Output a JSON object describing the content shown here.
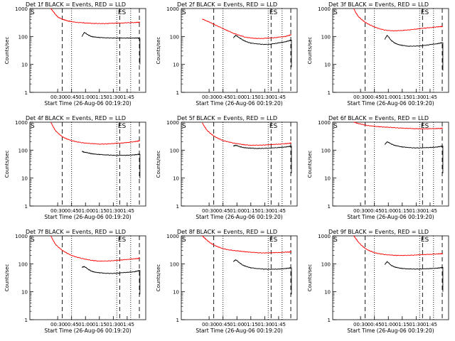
{
  "layout": "3x3",
  "chart_data": [
    {
      "type": "line",
      "title": "Det 1f BLACK = Events, RED = LLD",
      "xlabel": "Start Time (26-Aug-06 00:19:20)",
      "ylabel": "Counts/sec",
      "ylog": true,
      "ylim": [
        1,
        1000
      ],
      "yticks": [
        "1",
        "10",
        "100",
        "1000"
      ],
      "xticks": [
        "00:30",
        "00:45",
        "01:00",
        "01:15",
        "01:30",
        "01:45"
      ],
      "event_labels": [
        "S",
        "ES"
      ],
      "series": [
        {
          "color": "#ff0000",
          "x": [
            0.18,
            0.2,
            0.22,
            0.24,
            0.27,
            0.3,
            0.33,
            0.36,
            0.4,
            0.45,
            0.5,
            0.55,
            0.6,
            0.65,
            0.7,
            0.75,
            0.8,
            0.85,
            0.9,
            0.93,
            0.95
          ],
          "y": [
            1000,
            800,
            620,
            500,
            430,
            390,
            360,
            340,
            320,
            310,
            300,
            295,
            290,
            290,
            295,
            300,
            305,
            310,
            315,
            320,
            320
          ]
        },
        {
          "color": "#000000",
          "x": [
            0.45,
            0.47,
            0.5,
            0.53,
            0.56,
            0.6,
            0.65,
            0.7,
            0.75,
            0.8,
            0.85,
            0.9,
            0.93,
            0.95,
            0.95
          ],
          "y": [
            100,
            140,
            115,
            100,
            95,
            92,
            90,
            88,
            88,
            87,
            88,
            88,
            88,
            85,
            10
          ]
        }
      ]
    },
    {
      "type": "line",
      "title": "Det 2f BLACK = Events, RED = LLD",
      "xlabel": "Start Time (26-Aug-06 00:19:20)",
      "ylabel": "Counts/sec",
      "ylog": true,
      "ylim": [
        1,
        1000
      ],
      "yticks": [
        "1",
        "10",
        "100",
        "1000"
      ],
      "xticks": [
        "00:30",
        "00:45",
        "01:00",
        "01:15",
        "01:30",
        "01:45"
      ],
      "event_labels": [
        "S",
        "ES"
      ],
      "series": [
        {
          "color": "#ff0000",
          "x": [
            0.18,
            0.22,
            0.26,
            0.3,
            0.35,
            0.4,
            0.45,
            0.5,
            0.55,
            0.6,
            0.65,
            0.7,
            0.75,
            0.8,
            0.85,
            0.9,
            0.93,
            0.95
          ],
          "y": [
            420,
            360,
            300,
            250,
            200,
            160,
            130,
            110,
            95,
            88,
            85,
            85,
            88,
            90,
            95,
            100,
            110,
            115
          ]
        },
        {
          "color": "#000000",
          "x": [
            0.45,
            0.47,
            0.5,
            0.53,
            0.56,
            0.6,
            0.65,
            0.7,
            0.75,
            0.8,
            0.85,
            0.9,
            0.93,
            0.95,
            0.95
          ],
          "y": [
            90,
            110,
            90,
            75,
            65,
            58,
            55,
            52,
            52,
            55,
            60,
            65,
            70,
            75,
            8
          ]
        }
      ]
    },
    {
      "type": "line",
      "title": "Det 3f BLACK = Events, RED = LLD",
      "xlabel": "Start Time (26-Aug-06 00:19:20)",
      "ylabel": "Counts/sec",
      "ylog": true,
      "ylim": [
        1,
        1000
      ],
      "yticks": [
        "1",
        "10",
        "100",
        "1000"
      ],
      "xticks": [
        "00:30",
        "00:45",
        "01:00",
        "01:15",
        "01:30",
        "01:45"
      ],
      "event_labels": [
        "S",
        "ES"
      ],
      "series": [
        {
          "color": "#ff0000",
          "x": [
            0.18,
            0.2,
            0.22,
            0.25,
            0.28,
            0.32,
            0.36,
            0.4,
            0.45,
            0.5,
            0.55,
            0.6,
            0.65,
            0.7,
            0.75,
            0.8,
            0.85,
            0.9,
            0.93,
            0.95
          ],
          "y": [
            1000,
            700,
            520,
            400,
            320,
            260,
            220,
            190,
            170,
            160,
            160,
            165,
            170,
            180,
            190,
            200,
            210,
            220,
            225,
            230
          ]
        },
        {
          "color": "#000000",
          "x": [
            0.45,
            0.47,
            0.5,
            0.53,
            0.56,
            0.6,
            0.65,
            0.7,
            0.75,
            0.8,
            0.85,
            0.9,
            0.93,
            0.95,
            0.95
          ],
          "y": [
            80,
            110,
            75,
            60,
            52,
            48,
            45,
            45,
            46,
            48,
            52,
            55,
            58,
            60,
            6
          ]
        }
      ]
    },
    {
      "type": "line",
      "title": "Det 4f BLACK = Events, RED = LLD",
      "xlabel": "Start Time (26-Aug-06 00:19:20)",
      "ylabel": "Counts/sec",
      "ylog": true,
      "ylim": [
        1,
        1000
      ],
      "yticks": [
        "1",
        "10",
        "100",
        "1000"
      ],
      "xticks": [
        "00:30",
        "00:45",
        "01:00",
        "01:15",
        "01:30",
        "01:45"
      ],
      "event_labels": [
        "S",
        "ES"
      ],
      "series": [
        {
          "color": "#ff0000",
          "x": [
            0.18,
            0.2,
            0.22,
            0.25,
            0.28,
            0.32,
            0.36,
            0.4,
            0.45,
            0.5,
            0.55,
            0.6,
            0.65,
            0.7,
            0.75,
            0.8,
            0.85,
            0.9,
            0.93,
            0.95
          ],
          "y": [
            1000,
            700,
            500,
            380,
            300,
            250,
            220,
            200,
            185,
            175,
            170,
            165,
            165,
            170,
            175,
            180,
            190,
            200,
            210,
            220
          ]
        },
        {
          "color": "#000000",
          "x": [
            0.45,
            0.47,
            0.5,
            0.53,
            0.56,
            0.6,
            0.65,
            0.7,
            0.75,
            0.8,
            0.85,
            0.9,
            0.93,
            0.95,
            0.95
          ],
          "y": [
            90,
            85,
            80,
            75,
            72,
            70,
            68,
            66,
            65,
            65,
            66,
            68,
            70,
            72,
            10
          ]
        }
      ]
    },
    {
      "type": "line",
      "title": "Det 5f BLACK = Events, RED = LLD",
      "xlabel": "Start Time (26-Aug-06 00:19:20)",
      "ylabel": "Counts/sec",
      "ylog": true,
      "ylim": [
        1,
        1000
      ],
      "yticks": [
        "1",
        "10",
        "100",
        "1000"
      ],
      "xticks": [
        "00:30",
        "00:45",
        "01:00",
        "01:15",
        "01:30",
        "01:45"
      ],
      "event_labels": [
        "S",
        "ES"
      ],
      "series": [
        {
          "color": "#ff0000",
          "x": [
            0.18,
            0.2,
            0.22,
            0.25,
            0.28,
            0.32,
            0.36,
            0.4,
            0.45,
            0.5,
            0.55,
            0.6,
            0.65,
            0.7,
            0.75,
            0.8,
            0.85,
            0.9,
            0.93,
            0.95
          ],
          "y": [
            950,
            700,
            520,
            400,
            320,
            260,
            220,
            200,
            180,
            165,
            155,
            150,
            150,
            152,
            155,
            160,
            165,
            170,
            175,
            180
          ]
        },
        {
          "color": "#000000",
          "x": [
            0.45,
            0.47,
            0.5,
            0.53,
            0.56,
            0.6,
            0.65,
            0.7,
            0.75,
            0.8,
            0.85,
            0.9,
            0.93,
            0.95,
            0.95
          ],
          "y": [
            140,
            150,
            135,
            125,
            120,
            118,
            115,
            115,
            118,
            120,
            125,
            130,
            135,
            140,
            15
          ]
        }
      ]
    },
    {
      "type": "line",
      "title": "Det 6f BLACK = Events, RED = LLD",
      "xlabel": "Start Time (26-Aug-06 00:19:20)",
      "ylabel": "Counts/sec",
      "ylog": true,
      "ylim": [
        1,
        1000
      ],
      "yticks": [
        "1",
        "10",
        "100",
        "1000"
      ],
      "xticks": [
        "00:30",
        "00:45",
        "01:00",
        "01:15",
        "01:30",
        "01:45"
      ],
      "event_labels": [
        "S",
        "ES"
      ],
      "series": [
        {
          "color": "#ff0000",
          "x": [
            0.18,
            0.22,
            0.26,
            0.3,
            0.35,
            0.4,
            0.45,
            0.5,
            0.55,
            0.6,
            0.65,
            0.7,
            0.75,
            0.8,
            0.85,
            0.9,
            0.93,
            0.95
          ],
          "y": [
            1000,
            900,
            820,
            760,
            720,
            690,
            670,
            650,
            630,
            610,
            600,
            590,
            580,
            580,
            585,
            590,
            600,
            610
          ]
        },
        {
          "color": "#000000",
          "x": [
            0.45,
            0.47,
            0.5,
            0.53,
            0.56,
            0.6,
            0.65,
            0.7,
            0.75,
            0.8,
            0.85,
            0.9,
            0.93,
            0.95,
            0.95
          ],
          "y": [
            160,
            200,
            170,
            150,
            140,
            130,
            125,
            120,
            120,
            122,
            125,
            130,
            135,
            140,
            15
          ]
        }
      ]
    },
    {
      "type": "line",
      "title": "Det 7f BLACK = Events, RED = LLD",
      "xlabel": "Start Time (26-Aug-06 00:19:20)",
      "ylabel": "Counts/sec",
      "ylog": true,
      "ylim": [
        1,
        1000
      ],
      "yticks": [
        "1",
        "10",
        "100",
        "1000"
      ],
      "xticks": [
        "00:30",
        "00:45",
        "01:00",
        "01:15",
        "01:30",
        "01:45"
      ],
      "event_labels": [
        "S",
        "ES"
      ],
      "series": [
        {
          "color": "#ff0000",
          "x": [
            0.18,
            0.2,
            0.22,
            0.25,
            0.28,
            0.32,
            0.36,
            0.4,
            0.45,
            0.5,
            0.55,
            0.6,
            0.65,
            0.7,
            0.75,
            0.8,
            0.85,
            0.9,
            0.93,
            0.95
          ],
          "y": [
            1000,
            700,
            500,
            380,
            300,
            240,
            200,
            175,
            155,
            140,
            130,
            125,
            125,
            128,
            132,
            138,
            145,
            150,
            155,
            160
          ]
        },
        {
          "color": "#000000",
          "x": [
            0.45,
            0.47,
            0.5,
            0.53,
            0.56,
            0.6,
            0.65,
            0.7,
            0.75,
            0.8,
            0.85,
            0.9,
            0.93,
            0.95,
            0.95
          ],
          "y": [
            75,
            80,
            65,
            55,
            50,
            48,
            46,
            45,
            46,
            48,
            50,
            52,
            55,
            58,
            8
          ]
        }
      ]
    },
    {
      "type": "line",
      "title": "Det 8f BLACK = Events, RED = LLD",
      "xlabel": "Start Time (26-Aug-06 00:19:20)",
      "ylabel": "Counts/sec",
      "ylog": true,
      "ylim": [
        1,
        1000
      ],
      "yticks": [
        "1",
        "10",
        "100",
        "1000"
      ],
      "xticks": [
        "00:30",
        "00:45",
        "01:00",
        "01:15",
        "01:30",
        "01:45"
      ],
      "event_labels": [
        "S",
        "ES"
      ],
      "series": [
        {
          "color": "#ff0000",
          "x": [
            0.18,
            0.2,
            0.22,
            0.25,
            0.28,
            0.32,
            0.36,
            0.4,
            0.45,
            0.5,
            0.55,
            0.6,
            0.65,
            0.7,
            0.75,
            0.8,
            0.85,
            0.9,
            0.93,
            0.95
          ],
          "y": [
            1000,
            850,
            700,
            560,
            470,
            400,
            350,
            320,
            300,
            285,
            270,
            260,
            250,
            245,
            245,
            250,
            255,
            260,
            265,
            270
          ]
        },
        {
          "color": "#000000",
          "x": [
            0.45,
            0.47,
            0.5,
            0.53,
            0.56,
            0.6,
            0.65,
            0.7,
            0.75,
            0.8,
            0.85,
            0.9,
            0.93,
            0.95,
            0.95
          ],
          "y": [
            120,
            140,
            110,
            90,
            80,
            72,
            68,
            65,
            64,
            64,
            65,
            68,
            70,
            72,
            8
          ]
        }
      ]
    },
    {
      "type": "line",
      "title": "Det 9f BLACK = Events, RED = LLD",
      "xlabel": "Start Time (26-Aug-06 00:19:20)",
      "ylabel": "Counts/sec",
      "ylog": true,
      "ylim": [
        1,
        1000
      ],
      "yticks": [
        "1",
        "10",
        "100",
        "1000"
      ],
      "xticks": [
        "00:30",
        "00:45",
        "01:00",
        "01:15",
        "01:30",
        "01:45"
      ],
      "event_labels": [
        "S",
        "ES"
      ],
      "series": [
        {
          "color": "#ff0000",
          "x": [
            0.18,
            0.2,
            0.22,
            0.25,
            0.28,
            0.32,
            0.36,
            0.4,
            0.45,
            0.5,
            0.55,
            0.6,
            0.65,
            0.7,
            0.75,
            0.8,
            0.85,
            0.9,
            0.93,
            0.95
          ],
          "y": [
            1000,
            800,
            600,
            450,
            350,
            290,
            250,
            230,
            215,
            205,
            200,
            200,
            200,
            205,
            210,
            215,
            220,
            225,
            230,
            230
          ]
        },
        {
          "color": "#000000",
          "x": [
            0.45,
            0.47,
            0.5,
            0.53,
            0.56,
            0.6,
            0.65,
            0.7,
            0.75,
            0.8,
            0.85,
            0.9,
            0.93,
            0.95,
            0.95
          ],
          "y": [
            95,
            120,
            90,
            78,
            72,
            68,
            66,
            65,
            65,
            66,
            68,
            70,
            72,
            75,
            10
          ]
        }
      ]
    }
  ]
}
